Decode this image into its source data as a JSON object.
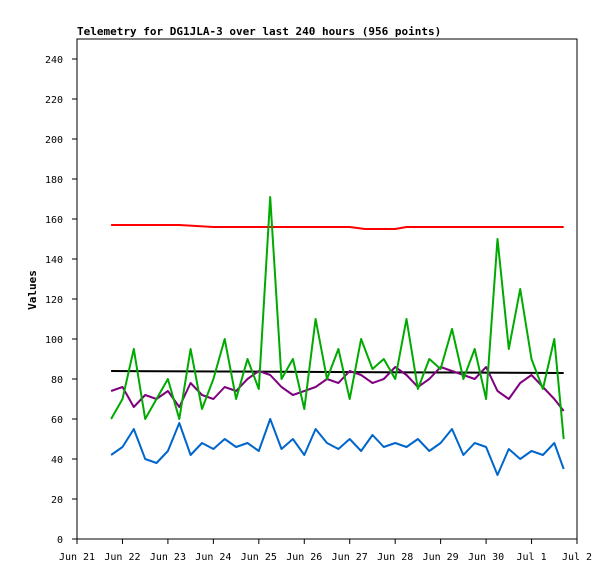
{
  "chart_data": {
    "type": "line",
    "title": "Telemetry for DG1JLA-3 over last 240 hours (956 points)",
    "xlabel": "",
    "ylabel": "Values",
    "xlim": [
      "Jun 21",
      "Jul 2"
    ],
    "ylim": [
      0,
      250
    ],
    "x_ticks": [
      "Jun 21",
      "Jun 22",
      "Jun 23",
      "Jun 24",
      "Jun 25",
      "Jun 26",
      "Jun 27",
      "Jun 28",
      "Jun 29",
      "Jun 30",
      "Jul 1",
      "Jul 2"
    ],
    "y_ticks": [
      0,
      20,
      40,
      60,
      80,
      100,
      120,
      140,
      160,
      180,
      200,
      220,
      240
    ],
    "grid": false,
    "legend": "none",
    "series": [
      {
        "color": "#ff0000",
        "x": [
          "Jun 21 18:00",
          "Jun 22 06:00",
          "Jun 22 12:00",
          "Jun 23 06:00",
          "Jun 24 00:00",
          "Jun 25 00:00",
          "Jun 26 00:00",
          "Jun 27 00:00",
          "Jun 27 08:00",
          "Jun 28 00:00",
          "Jun 28 06:00",
          "Jun 29 00:00",
          "Jun 30 00:00",
          "Jul 1 00:00",
          "Jul 1 17:00"
        ],
        "values": [
          157,
          157,
          157,
          157,
          156,
          156,
          156,
          156,
          155,
          155,
          156,
          156,
          156,
          156,
          156
        ]
      },
      {
        "color": "#000000",
        "x": [
          "Jun 21 18:00",
          "Jul 1 17:00"
        ],
        "values": [
          84,
          83
        ]
      },
      {
        "color": "#800080",
        "x": [
          "Jun 21 18:00",
          "Jun 22 00:00",
          "Jun 22 06:00",
          "Jun 22 12:00",
          "Jun 22 18:00",
          "Jun 23 00:00",
          "Jun 23 06:00",
          "Jun 23 12:00",
          "Jun 23 18:00",
          "Jun 24 00:00",
          "Jun 24 06:00",
          "Jun 24 12:00",
          "Jun 24 18:00",
          "Jun 25 00:00",
          "Jun 25 06:00",
          "Jun 25 12:00",
          "Jun 25 18:00",
          "Jun 26 00:00",
          "Jun 26 06:00",
          "Jun 26 12:00",
          "Jun 26 18:00",
          "Jun 27 00:00",
          "Jun 27 06:00",
          "Jun 27 12:00",
          "Jun 27 18:00",
          "Jun 28 00:00",
          "Jun 28 06:00",
          "Jun 28 12:00",
          "Jun 28 18:00",
          "Jun 29 00:00",
          "Jun 29 06:00",
          "Jun 29 12:00",
          "Jun 29 18:00",
          "Jun 30 00:00",
          "Jun 30 06:00",
          "Jun 30 12:00",
          "Jun 30 18:00",
          "Jul 1 00:00",
          "Jul 1 06:00",
          "Jul 1 12:00",
          "Jul 1 17:00"
        ],
        "values": [
          74,
          76,
          66,
          72,
          70,
          74,
          66,
          78,
          72,
          70,
          76,
          74,
          80,
          84,
          82,
          76,
          72,
          74,
          76,
          80,
          78,
          84,
          82,
          78,
          80,
          86,
          82,
          76,
          80,
          86,
          84,
          82,
          80,
          86,
          74,
          70,
          78,
          82,
          76,
          70,
          64
        ]
      },
      {
        "color": "#00aa00",
        "x": [
          "Jun 21 18:00",
          "Jun 22 00:00",
          "Jun 22 06:00",
          "Jun 22 12:00",
          "Jun 22 18:00",
          "Jun 23 00:00",
          "Jun 23 06:00",
          "Jun 23 12:00",
          "Jun 23 18:00",
          "Jun 24 00:00",
          "Jun 24 06:00",
          "Jun 24 12:00",
          "Jun 24 18:00",
          "Jun 25 00:00",
          "Jun 25 06:00",
          "Jun 25 12:00",
          "Jun 25 18:00",
          "Jun 26 00:00",
          "Jun 26 06:00",
          "Jun 26 12:00",
          "Jun 26 18:00",
          "Jun 27 00:00",
          "Jun 27 06:00",
          "Jun 27 12:00",
          "Jun 27 18:00",
          "Jun 28 00:00",
          "Jun 28 06:00",
          "Jun 28 12:00",
          "Jun 28 18:00",
          "Jun 29 00:00",
          "Jun 29 06:00",
          "Jun 29 12:00",
          "Jun 29 18:00",
          "Jun 30 00:00",
          "Jun 30 06:00",
          "Jun 30 12:00",
          "Jun 30 18:00",
          "Jul 1 00:00",
          "Jul 1 06:00",
          "Jul 1 12:00",
          "Jul 1 17:00"
        ],
        "values": [
          60,
          70,
          95,
          60,
          70,
          80,
          60,
          95,
          65,
          80,
          100,
          70,
          90,
          75,
          171,
          80,
          90,
          65,
          110,
          80,
          95,
          70,
          100,
          85,
          90,
          80,
          110,
          75,
          90,
          85,
          105,
          80,
          95,
          70,
          150,
          95,
          125,
          90,
          75,
          100,
          50
        ]
      },
      {
        "color": "#0066cc",
        "x": [
          "Jun 21 18:00",
          "Jun 22 00:00",
          "Jun 22 06:00",
          "Jun 22 12:00",
          "Jun 22 18:00",
          "Jun 23 00:00",
          "Jun 23 06:00",
          "Jun 23 12:00",
          "Jun 23 18:00",
          "Jun 24 00:00",
          "Jun 24 06:00",
          "Jun 24 12:00",
          "Jun 24 18:00",
          "Jun 25 00:00",
          "Jun 25 06:00",
          "Jun 25 12:00",
          "Jun 25 18:00",
          "Jun 26 00:00",
          "Jun 26 06:00",
          "Jun 26 12:00",
          "Jun 26 18:00",
          "Jun 27 00:00",
          "Jun 27 06:00",
          "Jun 27 12:00",
          "Jun 27 18:00",
          "Jun 28 00:00",
          "Jun 28 06:00",
          "Jun 28 12:00",
          "Jun 28 18:00",
          "Jun 29 00:00",
          "Jun 29 06:00",
          "Jun 29 12:00",
          "Jun 29 18:00",
          "Jun 30 00:00",
          "Jun 30 06:00",
          "Jun 30 12:00",
          "Jun 30 18:00",
          "Jul 1 00:00",
          "Jul 1 06:00",
          "Jul 1 12:00",
          "Jul 1 17:00"
        ],
        "values": [
          42,
          46,
          55,
          40,
          38,
          44,
          58,
          42,
          48,
          45,
          50,
          46,
          48,
          44,
          60,
          45,
          50,
          42,
          55,
          48,
          45,
          50,
          44,
          52,
          46,
          48,
          46,
          50,
          44,
          48,
          55,
          42,
          48,
          46,
          32,
          45,
          40,
          44,
          42,
          48,
          35
        ]
      }
    ]
  }
}
